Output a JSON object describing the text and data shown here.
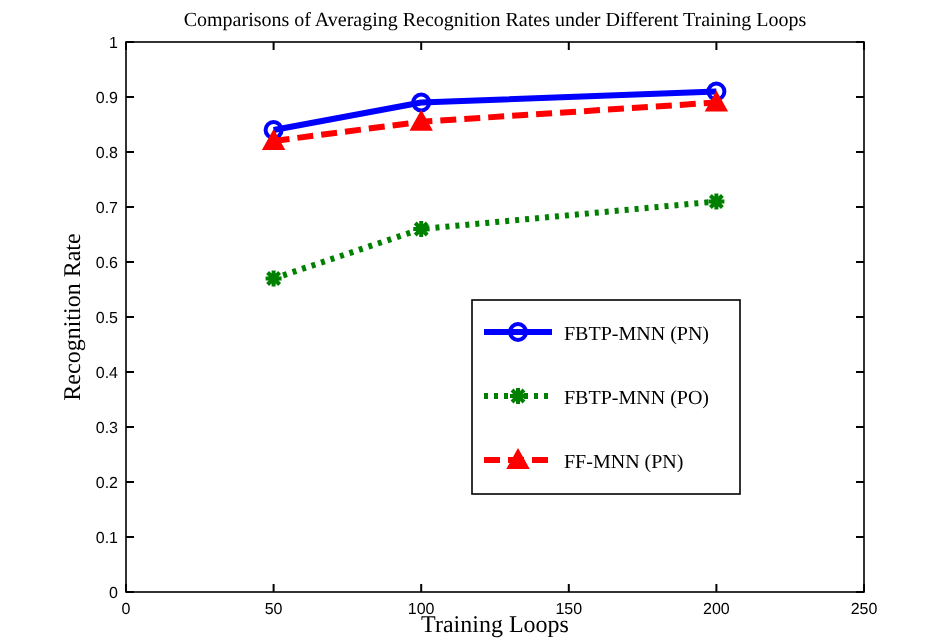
{
  "chart_data": {
    "type": "line",
    "title": "Comparisons of Averaging Recognition Rates under Different Training Loops",
    "xlabel": "Training Loops",
    "ylabel": "Recognition Rate",
    "x": [
      50,
      100,
      200
    ],
    "series": [
      {
        "name": "FBTP-MNN (PN)",
        "color": "#0000ff",
        "values": [
          0.84,
          0.89,
          0.91
        ],
        "marker": "circle",
        "line_style": "solid"
      },
      {
        "name": "FBTP-MNN (PO)",
        "color": "#008000",
        "values": [
          0.57,
          0.66,
          0.71
        ],
        "marker": "cross",
        "line_style": "dotted"
      },
      {
        "name": "FF-MNN (PN)",
        "color": "#ff0000",
        "values": [
          0.82,
          0.855,
          0.89
        ],
        "marker": "triangle",
        "line_style": "dashed"
      }
    ],
    "xlim": [
      0,
      250
    ],
    "xticks": [
      0,
      50,
      100,
      150,
      200,
      250
    ],
    "ylim": [
      0,
      1
    ],
    "yticks": [
      0,
      0.1,
      0.2,
      0.3,
      0.4,
      0.5,
      0.6,
      0.7,
      0.8,
      0.9,
      1
    ],
    "grid": false,
    "legend": "bottom right"
  }
}
